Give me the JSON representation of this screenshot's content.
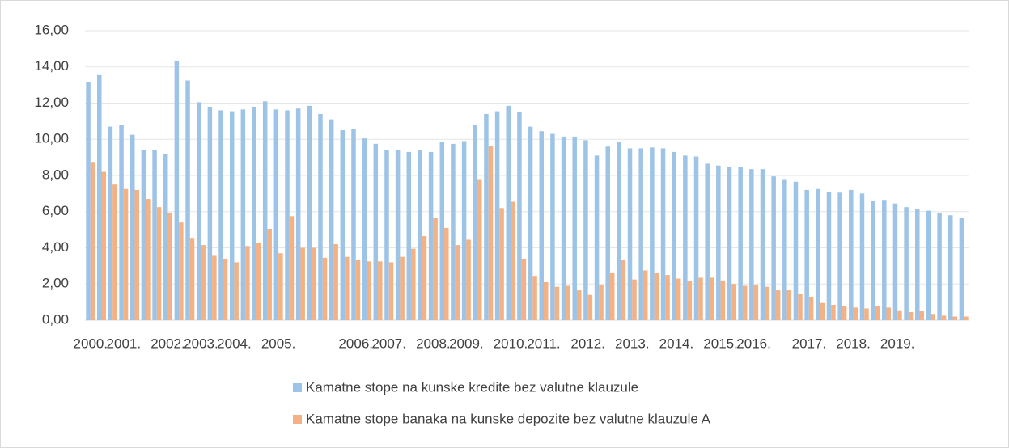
{
  "chart_data": {
    "type": "bar",
    "categories": [
      "2000.",
      null,
      null,
      "2001.",
      null,
      null,
      null,
      "2002.",
      null,
      null,
      "2003.",
      null,
      null,
      "2004.",
      null,
      null,
      null,
      "2005.",
      null,
      null,
      null,
      null,
      null,
      null,
      "2006.",
      null,
      null,
      "2007.",
      null,
      null,
      null,
      "2008.",
      null,
      null,
      "2009.",
      null,
      null,
      null,
      "2010.",
      null,
      null,
      "2011.",
      null,
      null,
      null,
      "2012.",
      null,
      null,
      null,
      "2013.",
      null,
      null,
      null,
      "2014.",
      null,
      null,
      null,
      "2015.",
      null,
      null,
      "2016.",
      null,
      null,
      null,
      null,
      "2017.",
      null,
      null,
      null,
      "2018.",
      null,
      null,
      null,
      "2019.",
      null,
      null,
      null,
      null,
      null,
      null
    ],
    "series": [
      {
        "name": "Kamatne stope na kunske kredite bez valutne klauzule",
        "color": "#9dc3e6",
        "values": [
          13.15,
          13.55,
          10.7,
          10.8,
          10.25,
          9.4,
          9.4,
          9.2,
          14.35,
          13.25,
          12.05,
          11.8,
          11.6,
          11.55,
          11.65,
          11.8,
          12.1,
          11.65,
          11.6,
          11.7,
          11.85,
          11.4,
          11.1,
          10.5,
          10.55,
          10.05,
          9.75,
          9.4,
          9.4,
          9.3,
          9.4,
          9.3,
          9.85,
          9.75,
          9.9,
          10.8,
          11.4,
          11.55,
          11.85,
          11.5,
          10.7,
          10.45,
          10.3,
          10.15,
          10.15,
          9.95,
          9.1,
          9.6,
          9.85,
          9.5,
          9.5,
          9.55,
          9.5,
          9.3,
          9.1,
          9.05,
          8.65,
          8.55,
          8.45,
          8.45,
          8.35,
          8.35,
          7.95,
          7.8,
          7.65,
          7.2,
          7.25,
          7.1,
          7.05,
          7.2,
          7.0,
          6.6,
          6.65,
          6.45,
          6.25,
          6.15,
          6.05,
          5.9,
          5.8,
          5.65
        ]
      },
      {
        "name": "Kamatne stope banaka na kunske depozite bez valutne klauzule A",
        "color": "#f4b183",
        "values": [
          8.75,
          8.2,
          7.5,
          7.25,
          7.2,
          6.7,
          6.25,
          5.95,
          5.4,
          4.55,
          4.15,
          3.6,
          3.4,
          3.2,
          4.1,
          4.25,
          5.05,
          3.7,
          5.75,
          4.0,
          4.0,
          3.45,
          4.2,
          3.5,
          3.35,
          3.25,
          3.25,
          3.2,
          3.5,
          3.95,
          4.65,
          5.65,
          5.1,
          4.15,
          4.45,
          7.8,
          9.65,
          6.2,
          6.55,
          3.4,
          2.45,
          2.1,
          1.85,
          1.9,
          1.65,
          1.4,
          1.95,
          2.6,
          3.35,
          2.25,
          2.75,
          2.6,
          2.5,
          2.3,
          2.15,
          2.35,
          2.35,
          2.2,
          2.0,
          1.9,
          1.95,
          1.85,
          1.65,
          1.65,
          1.45,
          1.3,
          0.95,
          0.85,
          0.8,
          0.7,
          0.65,
          0.8,
          0.7,
          0.55,
          0.45,
          0.5,
          0.35,
          0.25,
          0.2,
          0.2
        ]
      }
    ],
    "ylim": [
      0,
      16
    ],
    "yticks": [
      {
        "value": 0,
        "label": "0,00"
      },
      {
        "value": 2,
        "label": "2,00"
      },
      {
        "value": 4,
        "label": "4,00"
      },
      {
        "value": 6,
        "label": "6,00"
      },
      {
        "value": 8,
        "label": "8,00"
      },
      {
        "value": 10,
        "label": "10,00"
      },
      {
        "value": 12,
        "label": "12,00"
      },
      {
        "value": 14,
        "label": "14,00"
      },
      {
        "value": 16,
        "label": "16,00"
      }
    ],
    "grid": true,
    "legend": "bottom"
  }
}
